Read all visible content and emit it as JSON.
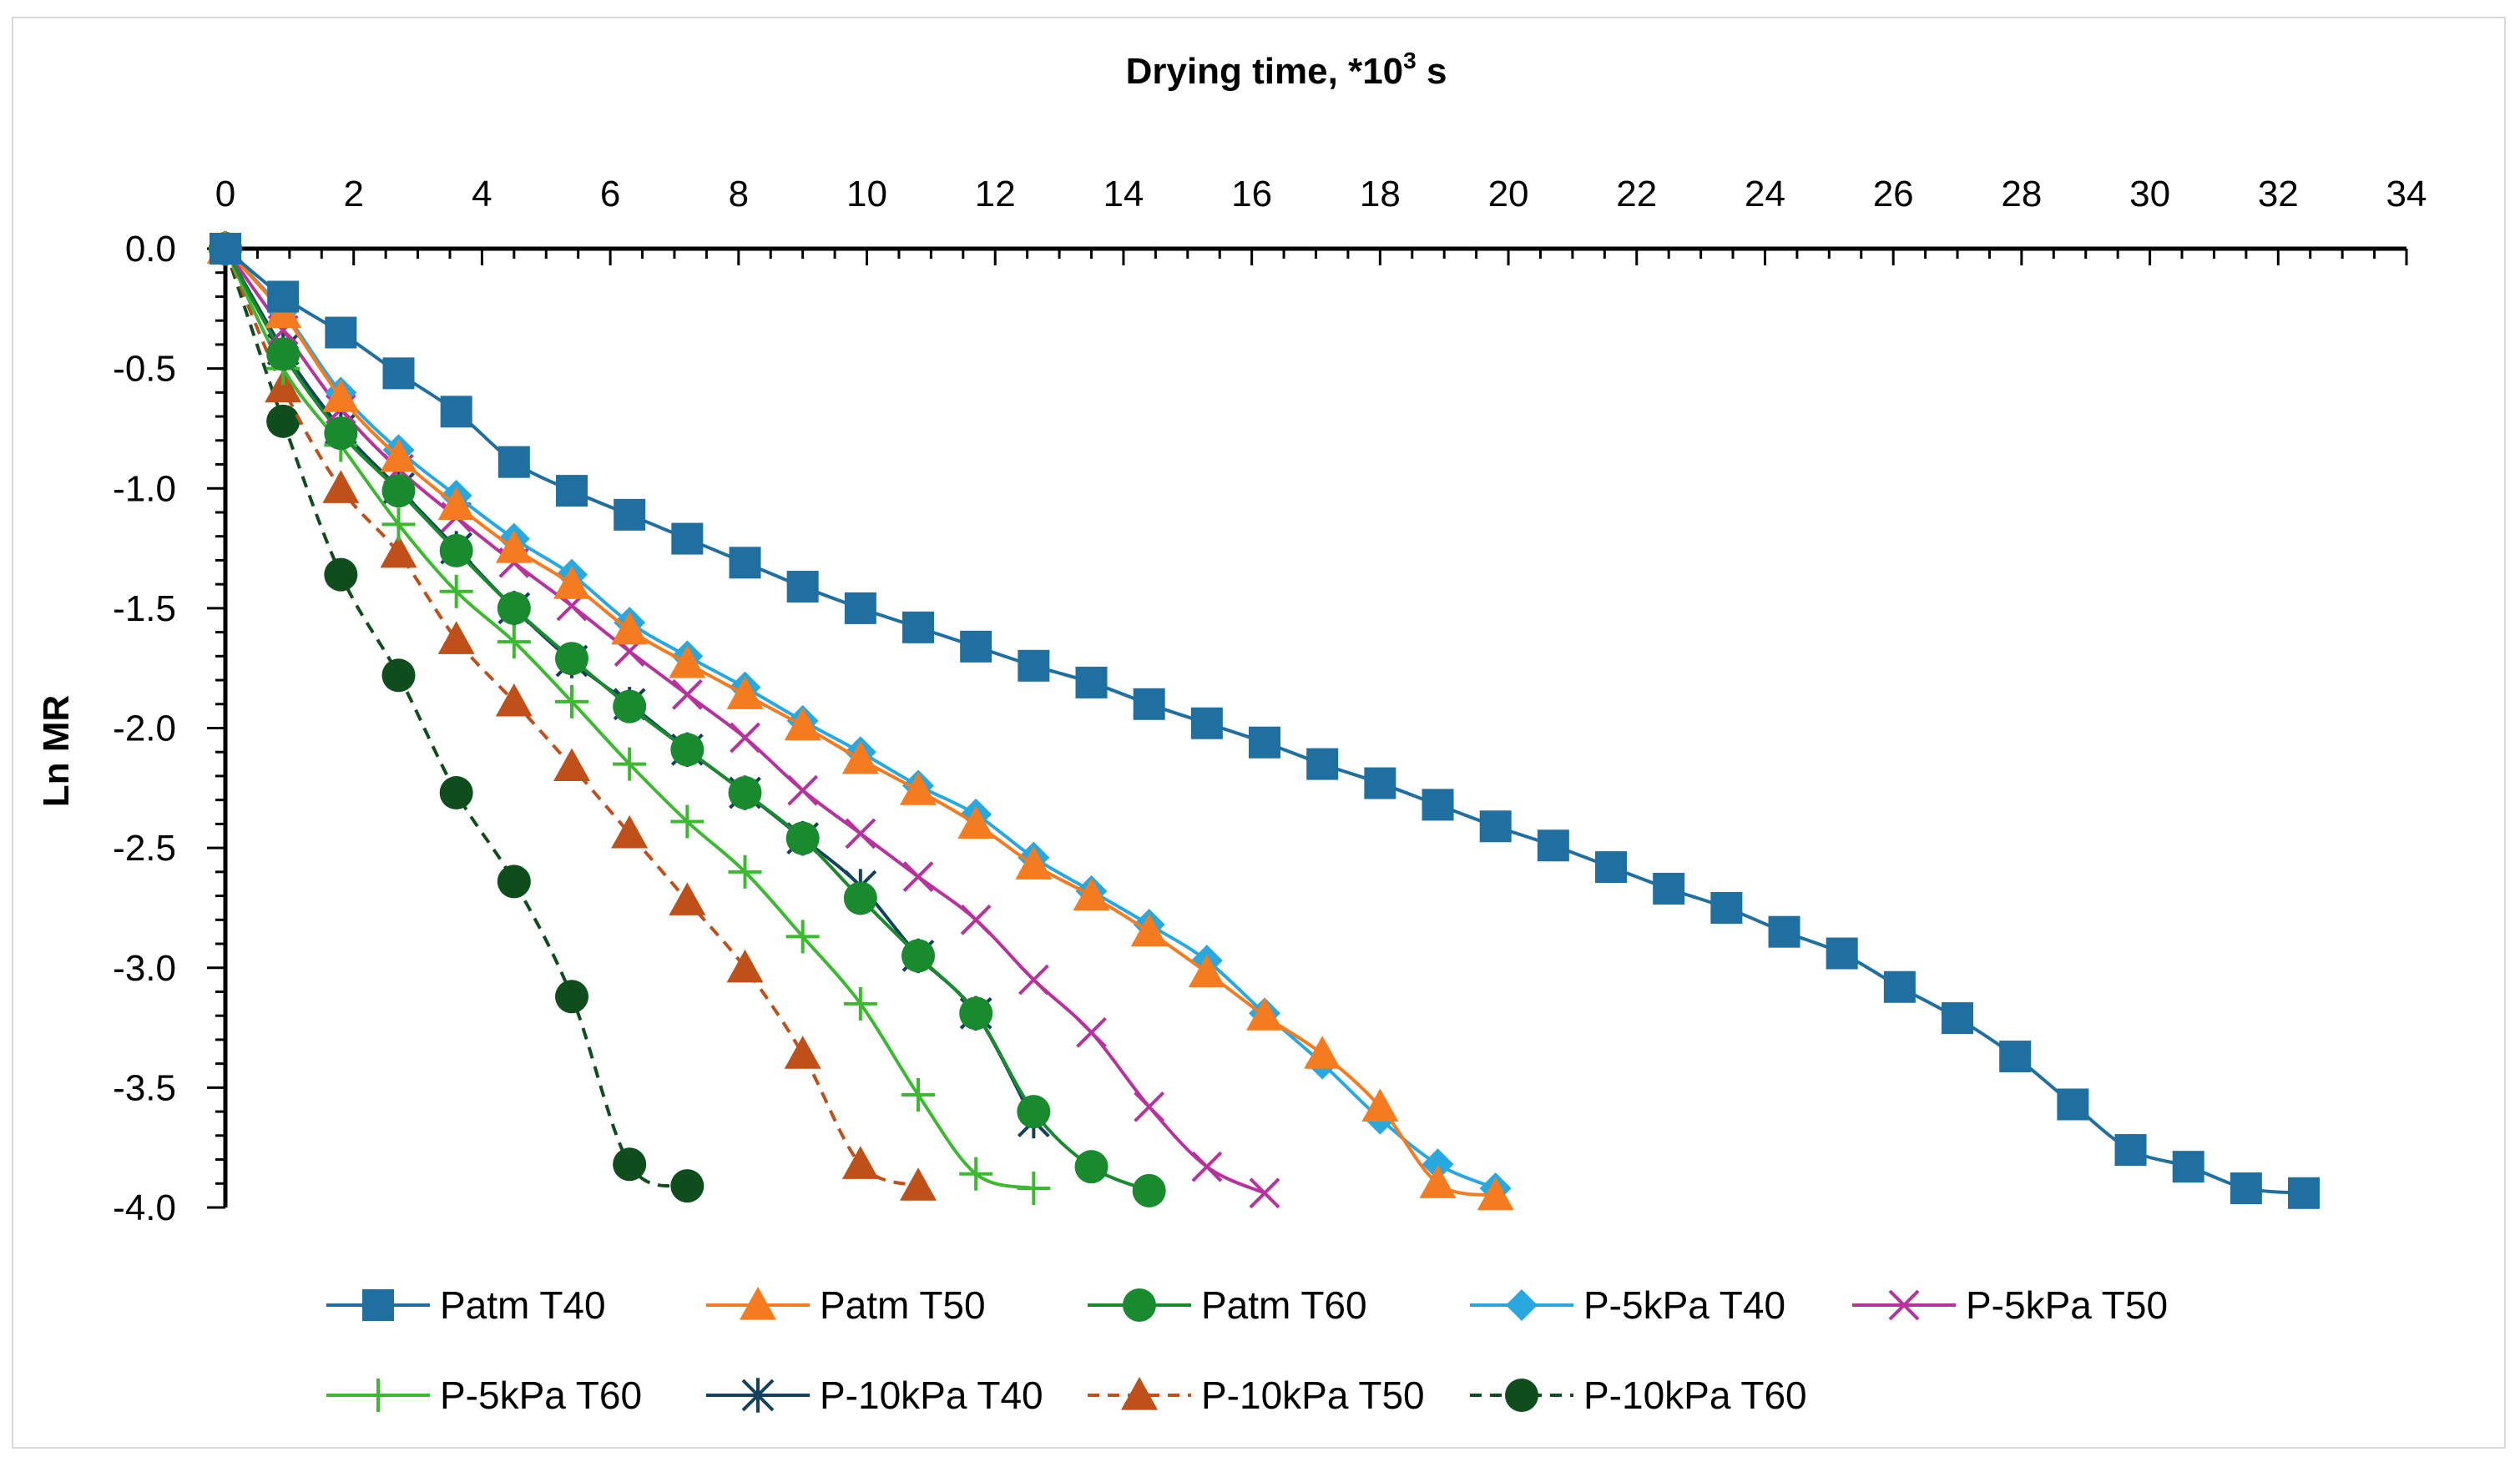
{
  "chart_data": {
    "type": "line",
    "xlabel": "Drying time, *10",
    "xlabel_sup": "3",
    "xlabel_unit": " s",
    "ylabel": "Ln MR",
    "xlim": [
      0,
      34
    ],
    "ylim": [
      -4.0,
      0.0
    ],
    "x_axis_position": "top",
    "x_ticks": [
      0,
      2,
      4,
      6,
      8,
      10,
      12,
      14,
      16,
      18,
      20,
      22,
      24,
      26,
      28,
      30,
      32,
      34
    ],
    "y_ticks": [
      0.0,
      -0.5,
      -1.0,
      -1.5,
      -2.0,
      -2.5,
      -3.0,
      -3.5,
      -4.0
    ],
    "y_tick_labels": [
      "0.0",
      "-0.5",
      "-1.0",
      "-1.5",
      "-2.0",
      "-2.5",
      "-3.0",
      "-3.5",
      "-4.0"
    ],
    "grid": false,
    "legend_position": "bottom",
    "series": [
      {
        "name": "Patm T40",
        "color": "#1f6fa0",
        "marker": "square",
        "dash": false,
        "x": [
          0,
          0.9,
          1.8,
          2.7,
          3.6,
          4.5,
          5.4,
          6.3,
          7.2,
          8.1,
          9.0,
          9.9,
          10.8,
          11.7,
          12.6,
          13.5,
          14.4,
          15.3,
          16.2,
          17.1,
          18.0,
          18.9,
          19.8,
          20.7,
          21.6,
          22.5,
          23.4,
          24.3,
          25.2,
          26.1,
          27.0,
          27.9,
          28.8,
          29.7,
          30.6,
          31.5,
          32.4
        ],
        "y": [
          0.0,
          -0.2,
          -0.35,
          -0.52,
          -0.68,
          -0.89,
          -1.01,
          -1.11,
          -1.21,
          -1.31,
          -1.41,
          -1.5,
          -1.58,
          -1.66,
          -1.74,
          -1.81,
          -1.9,
          -1.98,
          -2.06,
          -2.15,
          -2.23,
          -2.32,
          -2.41,
          -2.49,
          -2.58,
          -2.67,
          -2.75,
          -2.85,
          -2.94,
          -3.08,
          -3.21,
          -3.37,
          -3.57,
          -3.76,
          -3.83,
          -3.92,
          -3.94
        ]
      },
      {
        "name": "Patm T50",
        "color": "#f47b20",
        "marker": "triangle",
        "dash": false,
        "x": [
          0,
          0.9,
          1.8,
          2.7,
          3.6,
          4.5,
          5.4,
          6.3,
          7.2,
          8.1,
          9.0,
          9.9,
          10.8,
          11.7,
          12.6,
          13.5,
          14.4,
          15.3,
          16.2,
          17.1,
          18.0,
          18.9,
          19.8
        ],
        "y": [
          0.0,
          -0.27,
          -0.62,
          -0.87,
          -1.07,
          -1.25,
          -1.4,
          -1.59,
          -1.73,
          -1.86,
          -1.99,
          -2.13,
          -2.26,
          -2.4,
          -2.57,
          -2.7,
          -2.85,
          -3.02,
          -3.2,
          -3.36,
          -3.58,
          -3.9,
          -3.95
        ]
      },
      {
        "name": "Patm T60",
        "color": "#1a8a2e",
        "marker": "circle",
        "dash": false,
        "x": [
          0,
          0.9,
          1.8,
          2.7,
          3.6,
          4.5,
          5.4,
          6.3,
          7.2,
          8.1,
          9.0,
          9.9,
          10.8,
          11.7,
          12.6,
          13.5,
          14.4
        ],
        "y": [
          0.0,
          -0.44,
          -0.77,
          -1.01,
          -1.26,
          -1.5,
          -1.71,
          -1.91,
          -2.09,
          -2.27,
          -2.46,
          -2.71,
          -2.95,
          -3.19,
          -3.6,
          -3.83,
          -3.93
        ]
      },
      {
        "name": "P-5kPa T40",
        "color": "#29a8e0",
        "marker": "diamond",
        "dash": false,
        "x": [
          0,
          0.9,
          1.8,
          2.7,
          3.6,
          4.5,
          5.4,
          6.3,
          7.2,
          8.1,
          9.0,
          9.9,
          10.8,
          11.7,
          12.6,
          13.5,
          14.4,
          15.3,
          16.2,
          17.1,
          18.0,
          18.9,
          19.8
        ],
        "y": [
          0.0,
          -0.26,
          -0.6,
          -0.84,
          -1.03,
          -1.21,
          -1.36,
          -1.56,
          -1.7,
          -1.83,
          -1.97,
          -2.1,
          -2.24,
          -2.36,
          -2.54,
          -2.68,
          -2.82,
          -2.97,
          -3.19,
          -3.4,
          -3.63,
          -3.82,
          -3.92
        ]
      },
      {
        "name": "P-5kPa T50",
        "color": "#b8329e",
        "marker": "x",
        "dash": false,
        "x": [
          0,
          0.9,
          1.8,
          2.7,
          3.6,
          4.5,
          5.4,
          6.3,
          7.2,
          8.1,
          9.0,
          9.9,
          10.8,
          11.7,
          12.6,
          13.5,
          14.4,
          15.3,
          16.2
        ],
        "y": [
          0.0,
          -0.34,
          -0.67,
          -0.92,
          -1.12,
          -1.31,
          -1.49,
          -1.68,
          -1.86,
          -2.04,
          -2.26,
          -2.44,
          -2.62,
          -2.8,
          -3.05,
          -3.27,
          -3.58,
          -3.83,
          -3.94
        ]
      },
      {
        "name": "P-5kPa T60",
        "color": "#3cb931",
        "marker": "plus",
        "dash": false,
        "x": [
          0,
          0.9,
          1.8,
          2.7,
          3.6,
          4.5,
          5.4,
          6.3,
          7.2,
          8.1,
          9.0,
          9.9,
          10.8,
          11.7,
          12.6
        ],
        "y": [
          0.0,
          -0.5,
          -0.82,
          -1.15,
          -1.43,
          -1.64,
          -1.89,
          -2.15,
          -2.39,
          -2.6,
          -2.87,
          -3.15,
          -3.53,
          -3.86,
          -3.92
        ]
      },
      {
        "name": "P-10kPa T40",
        "color": "#13425e",
        "marker": "asterisk",
        "dash": false,
        "x": [
          0,
          0.9,
          1.8,
          2.7,
          3.6,
          4.5,
          5.4,
          6.3,
          7.2,
          8.1,
          9.0,
          9.9,
          10.8,
          11.7,
          12.6
        ],
        "y": [
          0.0,
          -0.42,
          -0.75,
          -1.0,
          -1.25,
          -1.5,
          -1.72,
          -1.9,
          -2.09,
          -2.27,
          -2.46,
          -2.66,
          -2.95,
          -3.19,
          -3.64
        ]
      },
      {
        "name": "P-10kPa T50",
        "color": "#c0501a",
        "marker": "triangle",
        "dash": true,
        "x": [
          0,
          0.9,
          1.8,
          2.7,
          3.6,
          4.5,
          5.4,
          6.3,
          7.2,
          8.1,
          9.0,
          9.9,
          10.8
        ],
        "y": [
          0.0,
          -0.58,
          -1.0,
          -1.27,
          -1.63,
          -1.89,
          -2.16,
          -2.44,
          -2.72,
          -3.0,
          -3.36,
          -3.82,
          -3.91
        ]
      },
      {
        "name": "P-10kPa T60",
        "color": "#0f4d1d",
        "marker": "circle",
        "dash": true,
        "x": [
          0,
          0.9,
          1.8,
          2.7,
          3.6,
          4.5,
          5.4,
          6.3,
          7.2
        ],
        "y": [
          0.0,
          -0.72,
          -1.36,
          -1.78,
          -2.27,
          -2.64,
          -3.12,
          -3.82,
          -3.91
        ]
      }
    ]
  }
}
